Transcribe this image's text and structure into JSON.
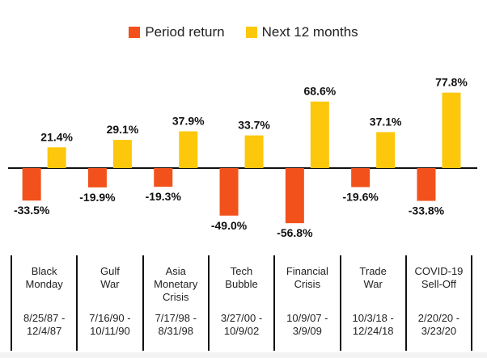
{
  "legend": {
    "items": [
      {
        "label": "Period return",
        "color": "#f2511b"
      },
      {
        "label": "Next 12 months",
        "color": "#fdc70b"
      }
    ]
  },
  "chart_data": {
    "type": "bar",
    "categories": [
      "Black Monday",
      "Gulf War",
      "Asia Monetary Crisis",
      "Tech Bubble",
      "Financial Crisis",
      "Trade War",
      "COVID-19 Sell-Off"
    ],
    "series": [
      {
        "name": "Period return",
        "color": "#f2511b",
        "values": [
          -33.5,
          -19.9,
          -19.3,
          -49.0,
          -56.8,
          -19.6,
          -33.8
        ],
        "labels": [
          "-33.5%",
          "-19.9%",
          "-19.3%",
          "-49.0%",
          "-56.8%",
          "-19.6%",
          "-33.8%"
        ]
      },
      {
        "name": "Next 12 months",
        "color": "#fdc70b",
        "values": [
          21.4,
          29.1,
          37.9,
          33.7,
          68.6,
          37.1,
          77.8
        ],
        "labels": [
          "21.4%",
          "29.1%",
          "37.9%",
          "33.7%",
          "68.6%",
          "37.1%",
          "77.8%"
        ]
      }
    ],
    "unit": "%",
    "grid": false,
    "legend_position": "top-center"
  },
  "events": [
    {
      "name_lines": [
        "Black",
        "Monday"
      ],
      "date_lines": [
        "8/25/87 -",
        "12/4/87"
      ]
    },
    {
      "name_lines": [
        "Gulf",
        "War"
      ],
      "date_lines": [
        "7/16/90 -",
        "10/11/90"
      ]
    },
    {
      "name_lines": [
        "Asia",
        "Monetary",
        "Crisis"
      ],
      "date_lines": [
        "7/17/98 -",
        "8/31/98"
      ]
    },
    {
      "name_lines": [
        "Tech",
        "Bubble"
      ],
      "date_lines": [
        "3/27/00 -",
        "10/9/02"
      ]
    },
    {
      "name_lines": [
        "Financial",
        "Crisis"
      ],
      "date_lines": [
        "10/9/07 -",
        "3/9/09"
      ]
    },
    {
      "name_lines": [
        "Trade",
        "War"
      ],
      "date_lines": [
        "10/3/18 -",
        "12/24/18"
      ]
    },
    {
      "name_lines": [
        "COVID-19",
        "Sell-Off"
      ],
      "date_lines": [
        "2/20/20 -",
        "3/23/20"
      ]
    }
  ]
}
